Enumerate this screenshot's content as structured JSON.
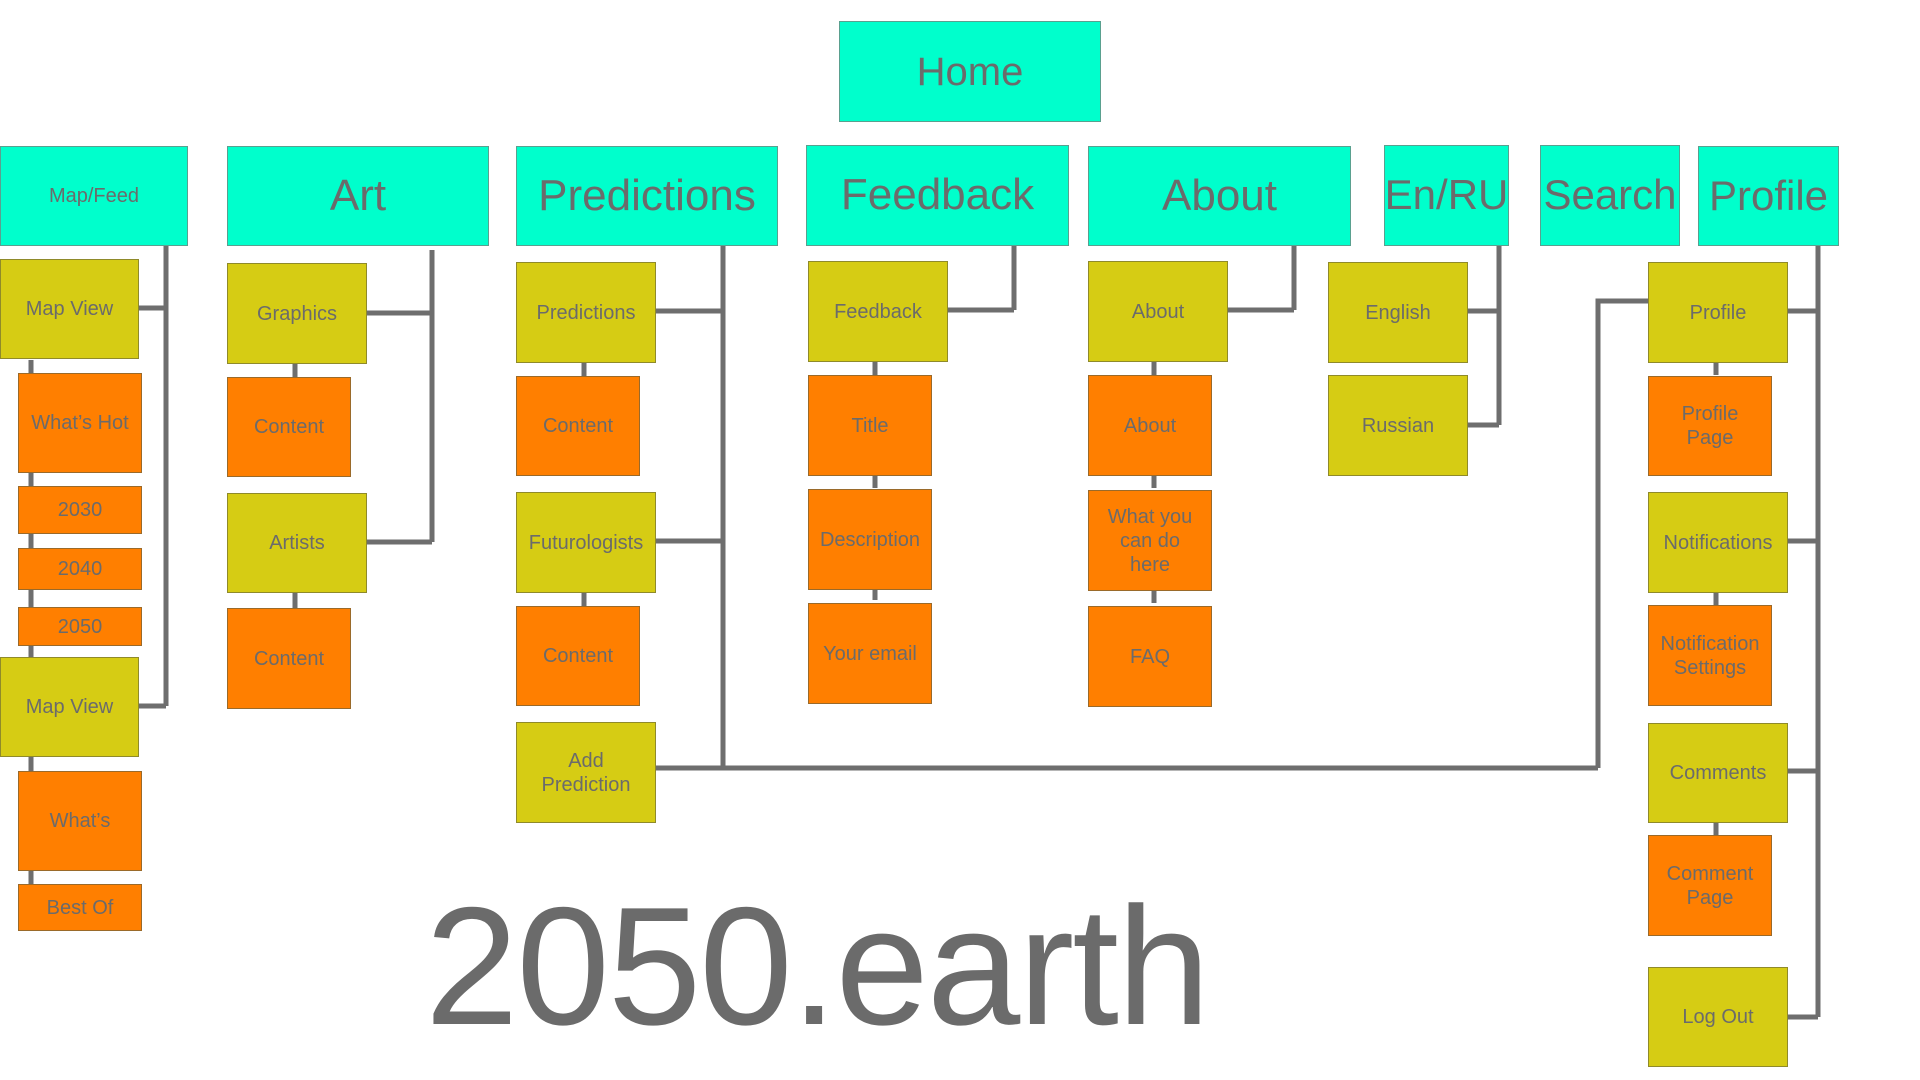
{
  "home": "Home",
  "brand": "2050.earth",
  "nav": {
    "map_feed": "Map/Feed",
    "art": "Art",
    "predictions": "Predictions",
    "feedback": "Feedback",
    "about": "About",
    "en_ru": "En/RU",
    "search": "Search",
    "profile": "Profile"
  },
  "map_feed": {
    "map_view_1": "Map View",
    "whats_hot": "What’s Hot",
    "y2030": "2030",
    "y2040": "2040",
    "y2050": "2050",
    "map_view_2": "Map View",
    "whats": "What’s",
    "best_of": "Best Of"
  },
  "art": {
    "graphics": "Graphics",
    "content_1": "Content",
    "artists": "Artists",
    "content_2": "Content"
  },
  "predictions": {
    "predictions": "Predictions",
    "content_1": "Content",
    "futurologists": "Futurologists",
    "content_2": "Content",
    "add_prediction": "Add Prediction"
  },
  "feedback": {
    "feedback": "Feedback",
    "title": "Title",
    "description": "Description",
    "your_email": "Your email"
  },
  "about": {
    "about_1": "About",
    "about_2": "About",
    "what_you_can_do": "What you can do here",
    "faq": "FAQ"
  },
  "language": {
    "english": "English",
    "russian": "Russian"
  },
  "profile": {
    "profile": "Profile",
    "profile_page": "Profile Page",
    "notifications": "Notifications",
    "notification_settings": "Notification Settings",
    "comments": "Comments",
    "comment_page": "Comment Page",
    "log_out": "Log Out"
  },
  "colors": {
    "nav": "#00ffcc",
    "section": "#d6cc14",
    "content": "#ff7f00",
    "connector": "#6e6e6e"
  }
}
